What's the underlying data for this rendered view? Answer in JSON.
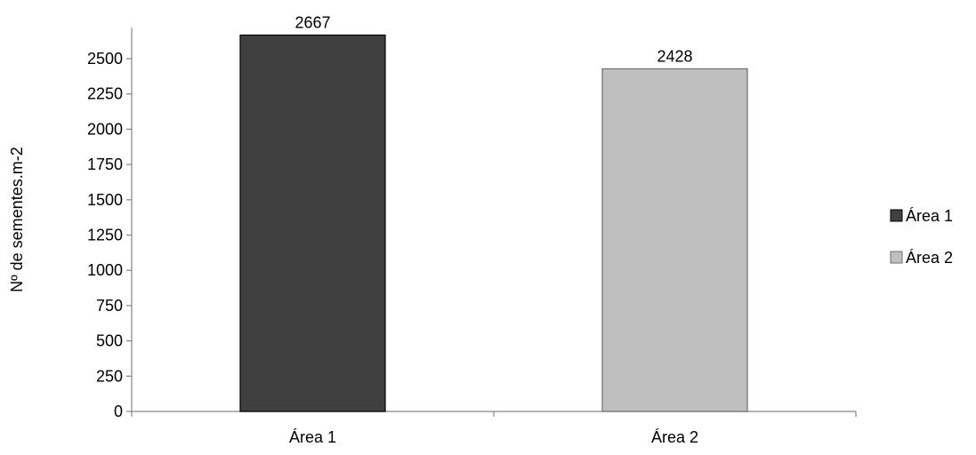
{
  "chart_data": {
    "type": "bar",
    "title": "",
    "xlabel": "",
    "ylabel": "Nº de sementes.m-2",
    "categories": [
      "Área 1",
      "Área 2"
    ],
    "values": [
      2667,
      2428
    ],
    "data_labels": [
      "2667",
      "2428"
    ],
    "colors": [
      "#404040",
      "#bfbfbf"
    ],
    "ylim": [
      0,
      2700
    ],
    "yticks": [
      0,
      250,
      500,
      750,
      1000,
      1250,
      1500,
      1750,
      2000,
      2250,
      2500
    ],
    "grid": false,
    "legend": {
      "placement": "right",
      "entries": [
        "Área 1",
        "Área 2"
      ]
    }
  }
}
